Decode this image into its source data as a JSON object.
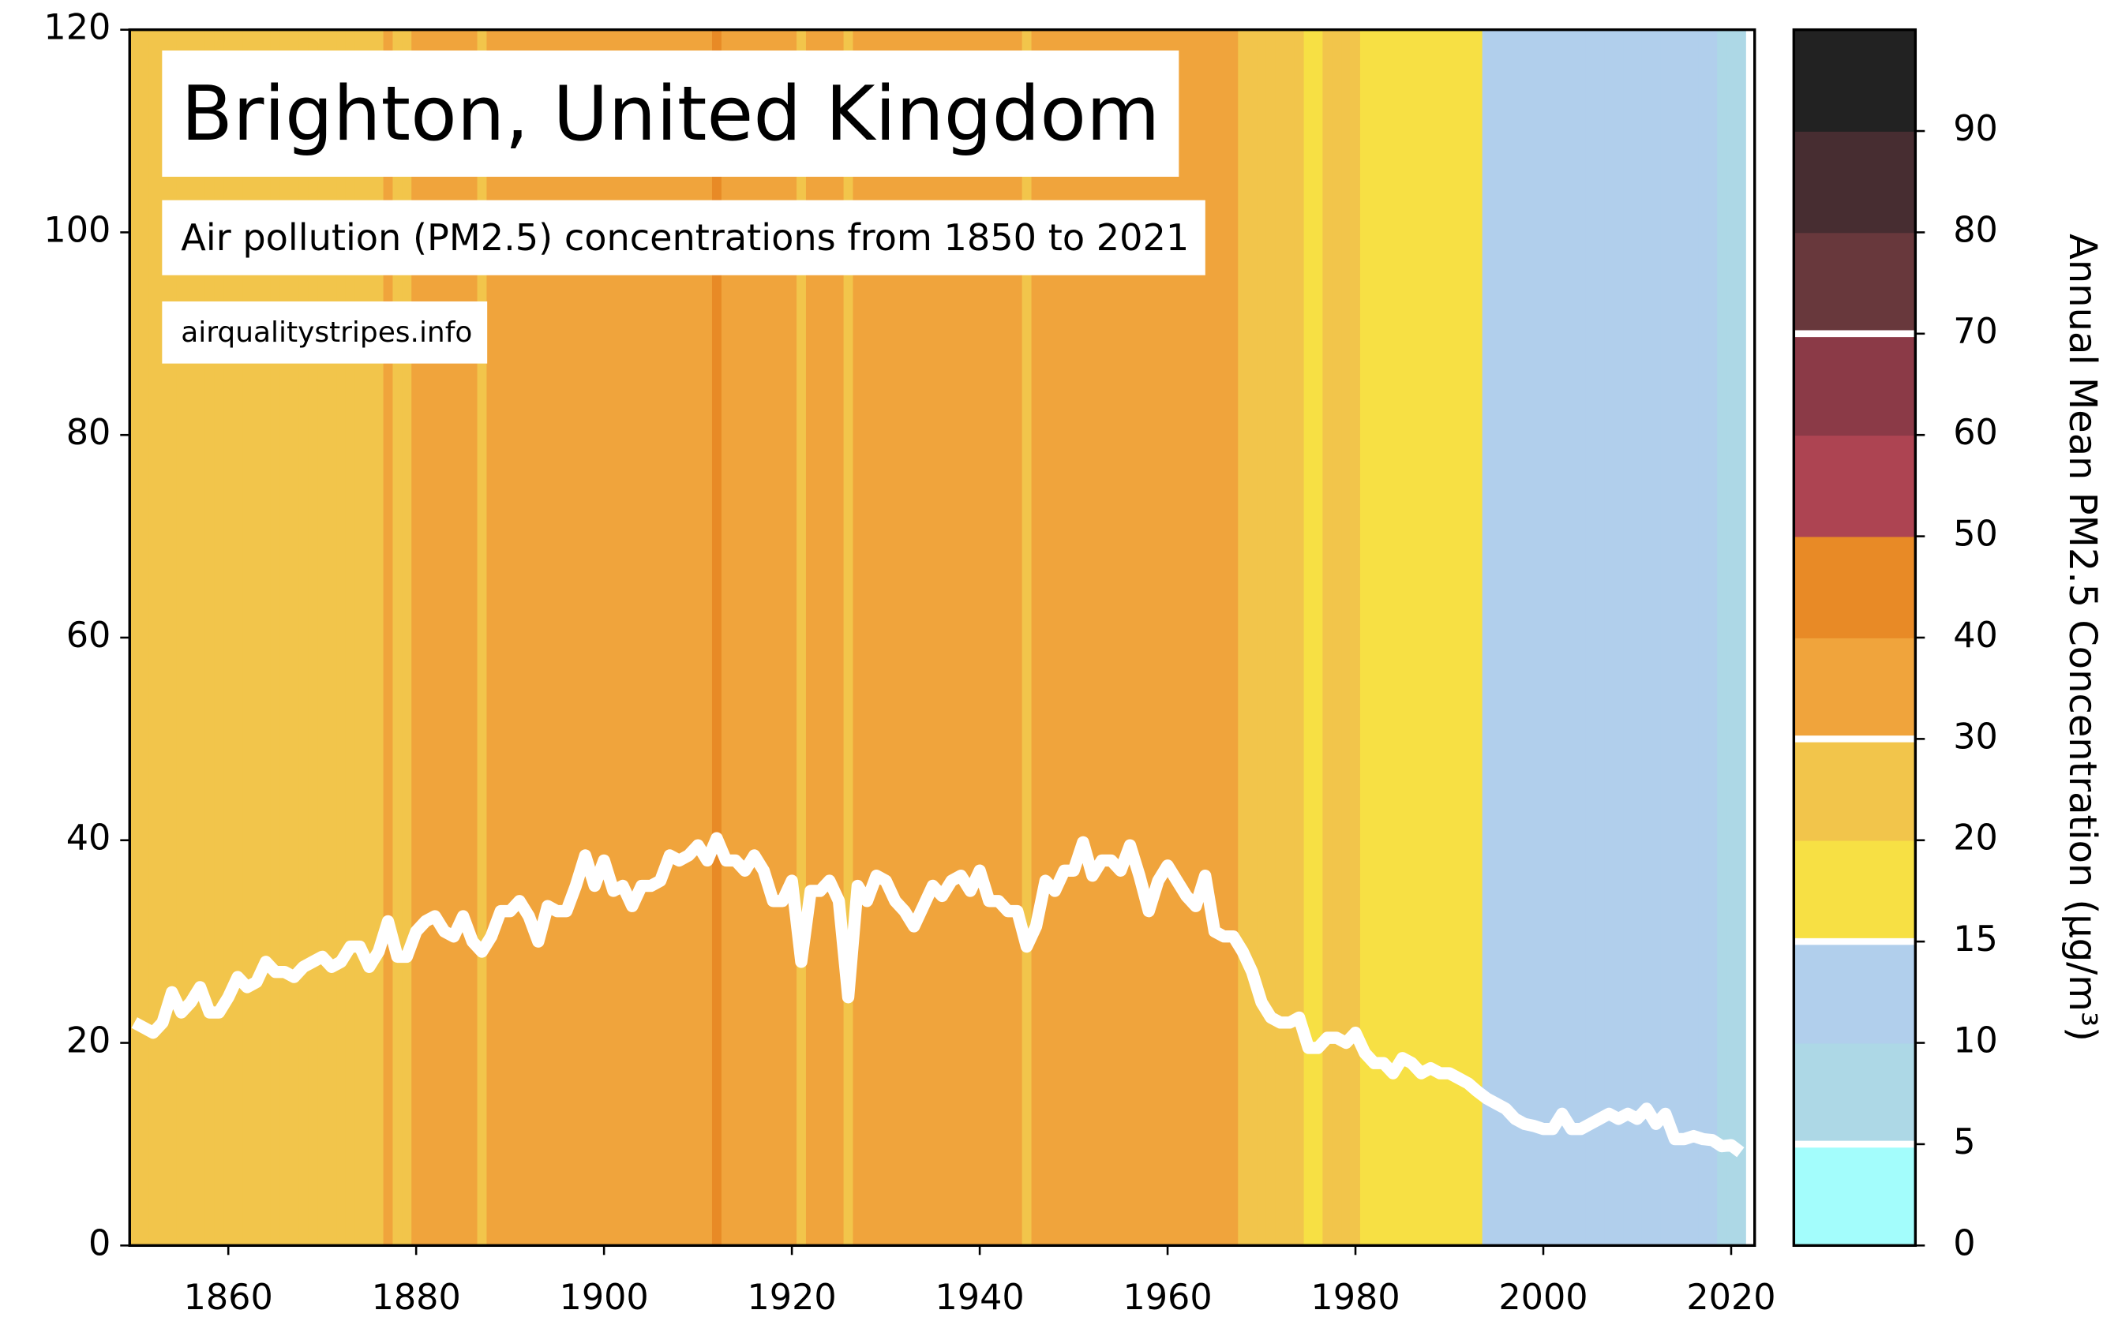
{
  "chart_data": {
    "type": "stripes-line",
    "title": "Brighton, United Kingdom",
    "subtitle": "Air pollution (PM2.5) concentrations from 1850 to 2021",
    "source": "airqualitystripes.info",
    "x": [
      1850,
      1851,
      1852,
      1853,
      1854,
      1855,
      1856,
      1857,
      1858,
      1859,
      1860,
      1861,
      1862,
      1863,
      1864,
      1865,
      1866,
      1867,
      1868,
      1869,
      1870,
      1871,
      1872,
      1873,
      1874,
      1875,
      1876,
      1877,
      1878,
      1879,
      1880,
      1881,
      1882,
      1883,
      1884,
      1885,
      1886,
      1887,
      1888,
      1889,
      1890,
      1891,
      1892,
      1893,
      1894,
      1895,
      1896,
      1897,
      1898,
      1899,
      1900,
      1901,
      1902,
      1903,
      1904,
      1905,
      1906,
      1907,
      1908,
      1909,
      1910,
      1911,
      1912,
      1913,
      1914,
      1915,
      1916,
      1917,
      1918,
      1919,
      1920,
      1921,
      1922,
      1923,
      1924,
      1925,
      1926,
      1927,
      1928,
      1929,
      1930,
      1931,
      1932,
      1933,
      1934,
      1935,
      1936,
      1937,
      1938,
      1939,
      1940,
      1941,
      1942,
      1943,
      1944,
      1945,
      1946,
      1947,
      1948,
      1949,
      1950,
      1951,
      1952,
      1953,
      1954,
      1955,
      1956,
      1957,
      1958,
      1959,
      1960,
      1961,
      1962,
      1963,
      1964,
      1965,
      1966,
      1967,
      1968,
      1969,
      1970,
      1971,
      1972,
      1973,
      1974,
      1975,
      1976,
      1977,
      1978,
      1979,
      1980,
      1981,
      1982,
      1983,
      1984,
      1985,
      1986,
      1987,
      1988,
      1989,
      1990,
      1991,
      1992,
      1993,
      1994,
      1995,
      1996,
      1997,
      1998,
      1999,
      2000,
      2001,
      2002,
      2003,
      2004,
      2005,
      2006,
      2007,
      2008,
      2009,
      2010,
      2011,
      2012,
      2013,
      2014,
      2015,
      2016,
      2017,
      2018,
      2019,
      2020,
      2021
    ],
    "series": [
      {
        "color": "#ffffff",
        "values": [
          22,
          21.5,
          21,
          22,
          25,
          23,
          24,
          25.5,
          23,
          23,
          24.5,
          26.5,
          25.5,
          26,
          28,
          27,
          27,
          26.5,
          27.5,
          28,
          28.5,
          27.5,
          28,
          29.5,
          29.5,
          27.5,
          29,
          32,
          28.5,
          28.5,
          31,
          32,
          32.5,
          31,
          30.5,
          32.5,
          30,
          29,
          30.5,
          33,
          33,
          34,
          32.5,
          30,
          33.5,
          33,
          33,
          35.5,
          38.5,
          35.5,
          38,
          35,
          35.5,
          33.5,
          35.5,
          35.5,
          36,
          38.5,
          38,
          38.5,
          39.5,
          38,
          40.2,
          38,
          38,
          37,
          38.5,
          37,
          34,
          34,
          36,
          28,
          35,
          35,
          36,
          34,
          24.5,
          35.5,
          34,
          36.5,
          36,
          34,
          33,
          31.5,
          33.5,
          35.5,
          34.5,
          36,
          36.5,
          35,
          37,
          34,
          34,
          33,
          33,
          29.5,
          31.5,
          36,
          35,
          37,
          37,
          39.8,
          36.5,
          38,
          38,
          37,
          39.5,
          36.5,
          33,
          36,
          37.5,
          36,
          34.5,
          33.5,
          36.5,
          31,
          30.5,
          30.5,
          29,
          27,
          24,
          22.5,
          22,
          22,
          22.5,
          19.5,
          19.5,
          20.5,
          20.5,
          20,
          21,
          19,
          18,
          18,
          17,
          18.5,
          18,
          17,
          17.5,
          17,
          17,
          16.5,
          16,
          15.2,
          14.5,
          14,
          13.5,
          12.5,
          12,
          11.8,
          11.5,
          11.5,
          13,
          11.5,
          11.5,
          12,
          12.5,
          13,
          12.5,
          13,
          12.5,
          13.5,
          12,
          13,
          10.5,
          10.5,
          10.8,
          10.5,
          10.4,
          9.8,
          9.9,
          9.2
        ]
      }
    ],
    "xlim": [
      1849.5,
      2022.5
    ],
    "xticks": [
      1860,
      1880,
      1900,
      1920,
      1940,
      1960,
      1980,
      2000,
      2020
    ],
    "ylim": [
      0,
      120
    ],
    "yticks": [
      0,
      20,
      40,
      60,
      80,
      100,
      120
    ],
    "colorbar": {
      "label": "Annual Mean PM2.5 Concentration (µg/m³)",
      "bounds": [
        0,
        5,
        10,
        15,
        20,
        30,
        40,
        50,
        60,
        70,
        80,
        90,
        100
      ],
      "colors": [
        "#a3fdfc",
        "#add8e6",
        "#b1cfec",
        "#f7e044",
        "#f2c54b",
        "#f0a43c",
        "#e88a26",
        "#ad4452",
        "#8b3a47",
        "#68383c",
        "#472d31",
        "#222222"
      ],
      "ticks": [
        0,
        5,
        10,
        15,
        20,
        30,
        40,
        50,
        60,
        70,
        80,
        90
      ],
      "lines": [
        5,
        15,
        30,
        70
      ]
    }
  }
}
